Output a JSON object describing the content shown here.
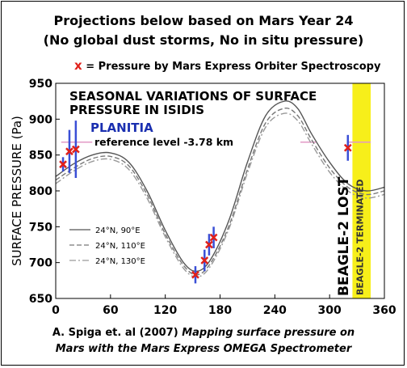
{
  "header": {
    "line1": "Projections below based on Mars Year 24",
    "line2": "(No global dust storms, No in situ pressure)"
  },
  "legend_note": {
    "marker": "x",
    "text": " = Pressure by Mars Express Orbiter Spectroscopy",
    "marker_color": "#e0201a"
  },
  "caption": {
    "line1_plain": "A. Spiga et. al (2007) ",
    "line1_italic": "Mapping surface pressure on",
    "line2_italic": "Mars with the Mars Express OMEGA Spectrometer"
  },
  "chart_data": {
    "type": "line",
    "title": "SEASONAL VARIATIONS OF SURFACE PRESSURE IN ISIDIS PLANITIA",
    "title_lines": [
      "SEASONAL VARIATIONS OF SURFACE",
      "PRESSURE IN ISIDIS",
      "PLANITIA"
    ],
    "subtitle": "reference level -3.78 km",
    "ylabel": "SURFACE PRESSURE (Pa)",
    "xlabel": "",
    "xlim": [
      0,
      360
    ],
    "ylim": [
      650,
      950
    ],
    "x_ticks": [
      0,
      60,
      120,
      180,
      240,
      300,
      360
    ],
    "y_ticks": [
      650,
      700,
      750,
      800,
      850,
      900,
      950
    ],
    "series": [
      {
        "name": "24°N, 90°E",
        "style": "solid",
        "x": [
          0,
          20,
          40,
          60,
          80,
          100,
          120,
          140,
          155,
          170,
          190,
          210,
          230,
          250,
          265,
          280,
          300,
          320,
          340,
          360
        ],
        "y": [
          820,
          838,
          850,
          853,
          840,
          800,
          745,
          700,
          688,
          705,
          760,
          840,
          905,
          925,
          915,
          880,
          840,
          810,
          800,
          805
        ]
      },
      {
        "name": "24°N, 110°E",
        "style": "dashed",
        "x": [
          0,
          20,
          40,
          60,
          80,
          100,
          120,
          140,
          155,
          170,
          190,
          210,
          230,
          250,
          265,
          280,
          300,
          320,
          340,
          360
        ],
        "y": [
          815,
          832,
          845,
          848,
          835,
          795,
          740,
          696,
          683,
          700,
          752,
          830,
          895,
          915,
          905,
          872,
          832,
          805,
          795,
          800
        ]
      },
      {
        "name": "24°N, 130°E",
        "style": "dashdot",
        "x": [
          0,
          20,
          40,
          60,
          80,
          100,
          120,
          140,
          155,
          170,
          190,
          210,
          230,
          250,
          265,
          280,
          300,
          320,
          340,
          360
        ],
        "y": [
          810,
          828,
          841,
          844,
          830,
          790,
          736,
          692,
          680,
          696,
          748,
          825,
          889,
          908,
          898,
          866,
          826,
          800,
          790,
          795
        ]
      }
    ],
    "observations": {
      "name": "Pressure by Mars Express Orbiter Spectroscopy",
      "color": "#e0201a",
      "points": [
        {
          "x": 8,
          "y": 837,
          "err": 10
        },
        {
          "x": 15,
          "y": 855,
          "err": 30
        },
        {
          "x": 22,
          "y": 858,
          "err": 40
        },
        {
          "x": 153,
          "y": 683,
          "err": 12
        },
        {
          "x": 163,
          "y": 703,
          "err": 15
        },
        {
          "x": 168,
          "y": 725,
          "err": 15
        },
        {
          "x": 173,
          "y": 735,
          "err": 15
        },
        {
          "x": 320,
          "y": 860,
          "err": 18
        }
      ]
    },
    "reference_marks": [
      {
        "x1": 6,
        "x2": 40,
        "y": 868
      },
      {
        "x1": 320,
        "x2": 345,
        "y": 868
      },
      {
        "x1": 268,
        "x2": 285,
        "y": 868
      }
    ],
    "lost_event": {
      "x": 322,
      "label": "BEAGLE-2 LOST",
      "color": "#000000"
    },
    "terminated_band": {
      "x_start": 325,
      "x_end": 345,
      "label": "BEAGLE-2  TERMINATED",
      "color": "#f7ef1a"
    },
    "legend_position": "lower-left"
  }
}
